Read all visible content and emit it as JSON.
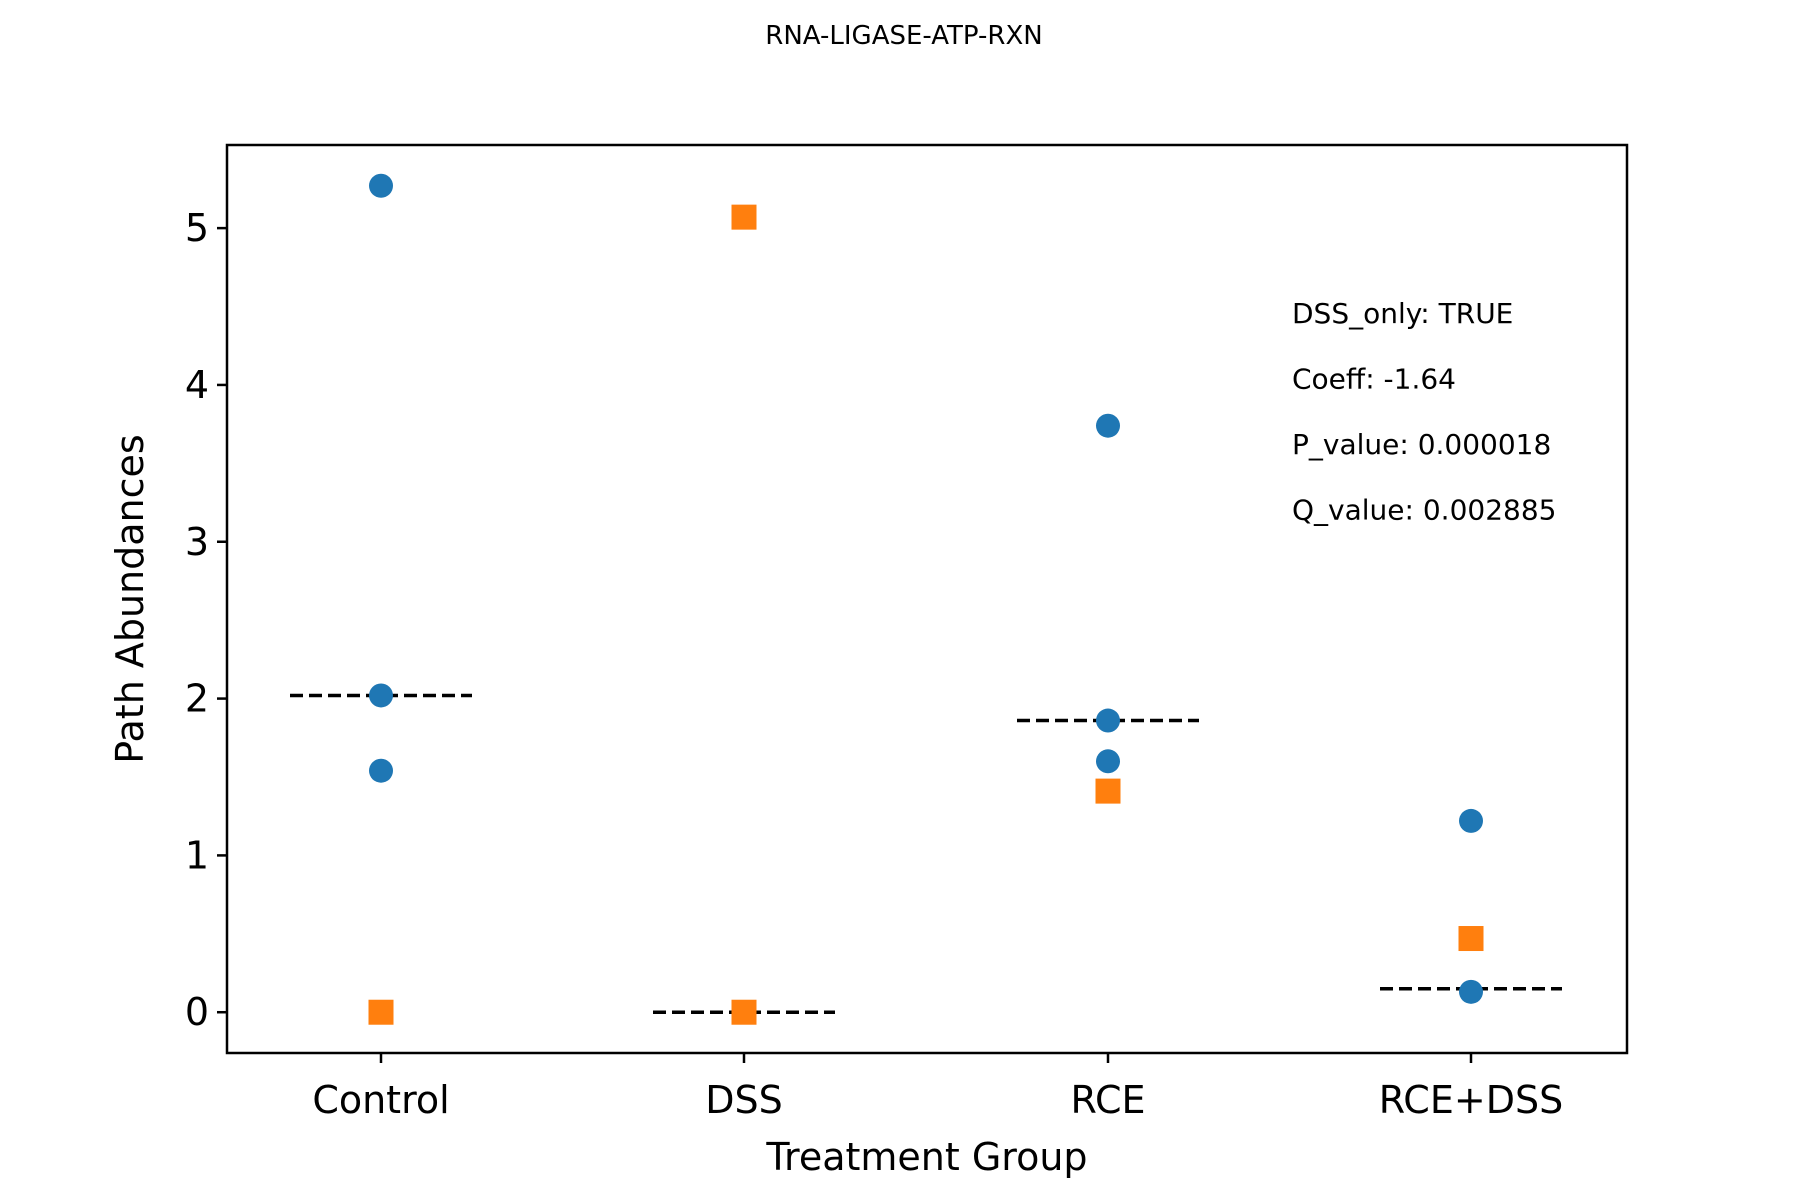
{
  "chart_data": {
    "type": "scatter",
    "title": "RNA-LIGASE-ATP-RXN",
    "xlabel": "Treatment Group",
    "ylabel": "Path Abundances",
    "categories": [
      "Control",
      "DSS",
      "RCE",
      "RCE+DSS"
    ],
    "ylim": [
      -0.26,
      5.53
    ],
    "yticks": [
      0,
      1,
      2,
      3,
      4,
      5
    ],
    "grid": false,
    "series": [
      {
        "marker": "circle",
        "color": "#1f77b4",
        "points": [
          {
            "category": "Control",
            "value": 5.27
          },
          {
            "category": "Control",
            "value": 2.02
          },
          {
            "category": "Control",
            "value": 1.54
          },
          {
            "category": "RCE",
            "value": 3.74
          },
          {
            "category": "RCE",
            "value": 1.86
          },
          {
            "category": "RCE",
            "value": 1.6
          },
          {
            "category": "RCE+DSS",
            "value": 1.22
          },
          {
            "category": "RCE+DSS",
            "value": 0.13
          }
        ]
      },
      {
        "marker": "square",
        "color": "#ff7f0e",
        "points": [
          {
            "category": "Control",
            "value": 0.0
          },
          {
            "category": "DSS",
            "value": 5.07
          },
          {
            "category": "DSS",
            "value": 0.0
          },
          {
            "category": "RCE",
            "value": 1.41
          },
          {
            "category": "RCE+DSS",
            "value": 0.47
          }
        ]
      }
    ],
    "medians": [
      {
        "category": "Control",
        "value": 2.02
      },
      {
        "category": "DSS",
        "value": 0.0
      },
      {
        "category": "RCE",
        "value": 1.86
      },
      {
        "category": "RCE+DSS",
        "value": 0.15
      }
    ],
    "median_style": "dashed",
    "annotations": [
      "DSS_only: TRUE",
      "Coeff: -1.64",
      "P_value: 0.000018",
      "Q_value: 0.002885"
    ]
  }
}
